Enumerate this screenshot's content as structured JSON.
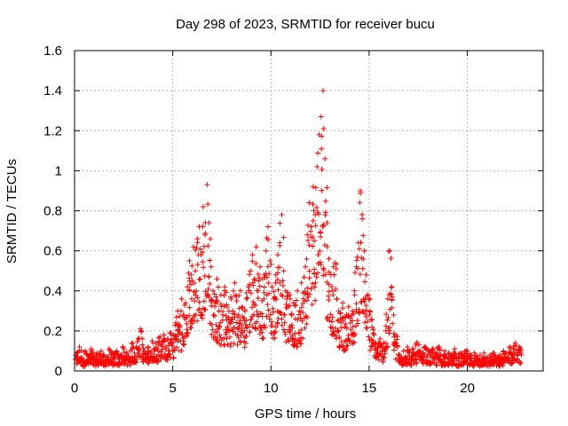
{
  "chart_data": {
    "type": "scatter",
    "title": "Day 298 of 2023, SRMTID for receiver bucu",
    "xlabel": "GPS time / hours",
    "ylabel": "SRMTID / TECUs",
    "xlim": [
      0,
      23.86
    ],
    "ylim": [
      0,
      1.6
    ],
    "x_ticks": [
      0,
      5,
      10,
      15,
      20
    ],
    "x_tick_labels": [
      "0",
      "5",
      "10",
      "15",
      "20"
    ],
    "y_ticks": [
      0,
      0.2,
      0.4,
      0.6,
      0.8,
      1.0,
      1.2,
      1.4,
      1.6
    ],
    "y_tick_labels": [
      "0",
      "0.2",
      "0.4",
      "0.6",
      "0.8",
      "1",
      "1.2",
      "1.4",
      "1.6"
    ],
    "grid": true,
    "marker": "+",
    "color": "#ff0000",
    "series": [
      {
        "name": "SRMTID",
        "points": [
          [
            0.05,
            0.06
          ],
          [
            0.15,
            0.09
          ],
          [
            0.25,
            0.12
          ],
          [
            0.35,
            0.07
          ],
          [
            0.45,
            0.05
          ],
          [
            0.55,
            0.1
          ],
          [
            0.65,
            0.08
          ],
          [
            0.75,
            0.06
          ],
          [
            0.85,
            0.11
          ],
          [
            0.95,
            0.07
          ],
          [
            1.05,
            0.05
          ],
          [
            1.15,
            0.09
          ],
          [
            1.25,
            0.06
          ],
          [
            1.35,
            0.1
          ],
          [
            1.45,
            0.08
          ],
          [
            1.55,
            0.05
          ],
          [
            1.65,
            0.07
          ],
          [
            1.75,
            0.11
          ],
          [
            1.85,
            0.06
          ],
          [
            1.95,
            0.09
          ],
          [
            2.05,
            0.07
          ],
          [
            2.15,
            0.1
          ],
          [
            2.25,
            0.06
          ],
          [
            2.35,
            0.08
          ],
          [
            2.45,
            0.12
          ],
          [
            2.55,
            0.07
          ],
          [
            2.65,
            0.09
          ],
          [
            2.75,
            0.06
          ],
          [
            2.85,
            0.1
          ],
          [
            2.95,
            0.14
          ],
          [
            3.05,
            0.09
          ],
          [
            3.15,
            0.12
          ],
          [
            3.25,
            0.16
          ],
          [
            3.35,
            0.21
          ],
          [
            3.45,
            0.13
          ],
          [
            3.55,
            0.1
          ],
          [
            3.65,
            0.08
          ],
          [
            3.75,
            0.12
          ],
          [
            3.85,
            0.09
          ],
          [
            3.95,
            0.15
          ],
          [
            4.05,
            0.11
          ],
          [
            4.15,
            0.14
          ],
          [
            4.25,
            0.1
          ],
          [
            4.35,
            0.17
          ],
          [
            4.45,
            0.13
          ],
          [
            4.55,
            0.18
          ],
          [
            4.65,
            0.12
          ],
          [
            4.75,
            0.16
          ],
          [
            4.85,
            0.19
          ],
          [
            4.95,
            0.14
          ],
          [
            5.05,
            0.18
          ],
          [
            5.15,
            0.24
          ],
          [
            5.25,
            0.3
          ],
          [
            5.35,
            0.22
          ],
          [
            5.45,
            0.36
          ],
          [
            5.55,
            0.28
          ],
          [
            5.65,
            0.34
          ],
          [
            5.75,
            0.42
          ],
          [
            5.85,
            0.55
          ],
          [
            5.95,
            0.48
          ],
          [
            6.05,
            0.62
          ],
          [
            6.15,
            0.5
          ],
          [
            6.25,
            0.66
          ],
          [
            6.35,
            0.72
          ],
          [
            6.45,
            0.58
          ],
          [
            6.55,
            0.82
          ],
          [
            6.65,
            0.68
          ],
          [
            6.75,
            0.93
          ],
          [
            6.85,
            0.74
          ],
          [
            6.95,
            0.52
          ],
          [
            7.05,
            0.4
          ],
          [
            7.15,
            0.34
          ],
          [
            7.25,
            0.46
          ],
          [
            7.35,
            0.3
          ],
          [
            7.45,
            0.38
          ],
          [
            7.55,
            0.28
          ],
          [
            7.65,
            0.42
          ],
          [
            7.75,
            0.33
          ],
          [
            7.85,
            0.26
          ],
          [
            7.95,
            0.37
          ],
          [
            8.05,
            0.3
          ],
          [
            8.15,
            0.44
          ],
          [
            8.25,
            0.35
          ],
          [
            8.35,
            0.28
          ],
          [
            8.45,
            0.4
          ],
          [
            8.55,
            0.32
          ],
          [
            8.65,
            0.25
          ],
          [
            8.75,
            0.36
          ],
          [
            8.85,
            0.42
          ],
          [
            8.95,
            0.5
          ],
          [
            9.05,
            0.58
          ],
          [
            9.15,
            0.46
          ],
          [
            9.25,
            0.62
          ],
          [
            9.35,
            0.4
          ],
          [
            9.45,
            0.52
          ],
          [
            9.55,
            0.35
          ],
          [
            9.65,
            0.48
          ],
          [
            9.75,
            0.6
          ],
          [
            9.85,
            0.72
          ],
          [
            9.95,
            0.55
          ],
          [
            10.05,
            0.42
          ],
          [
            10.15,
            0.36
          ],
          [
            10.25,
            0.48
          ],
          [
            10.35,
            0.58
          ],
          [
            10.45,
            0.64
          ],
          [
            10.55,
            0.78
          ],
          [
            10.65,
            0.5
          ],
          [
            10.75,
            0.4
          ],
          [
            10.85,
            0.32
          ],
          [
            10.95,
            0.38
          ],
          [
            11.05,
            0.28
          ],
          [
            11.15,
            0.34
          ],
          [
            11.25,
            0.26
          ],
          [
            11.35,
            0.4
          ],
          [
            11.45,
            0.3
          ],
          [
            11.55,
            0.44
          ],
          [
            11.65,
            0.36
          ],
          [
            11.75,
            0.52
          ],
          [
            11.85,
            0.68
          ],
          [
            11.95,
            0.84
          ],
          [
            12.05,
            0.72
          ],
          [
            12.15,
            0.92
          ],
          [
            12.25,
            0.78
          ],
          [
            12.35,
            1.02
          ],
          [
            12.45,
            1.18
          ],
          [
            12.55,
            1.27
          ],
          [
            12.65,
            1.4
          ],
          [
            12.75,
            1.06
          ],
          [
            12.85,
            0.74
          ],
          [
            12.95,
            0.56
          ],
          [
            13.05,
            0.48
          ],
          [
            13.15,
            0.4
          ],
          [
            13.25,
            0.54
          ],
          [
            13.35,
            0.36
          ],
          [
            13.45,
            0.3
          ],
          [
            13.55,
            0.26
          ],
          [
            13.65,
            0.34
          ],
          [
            13.75,
            0.22
          ],
          [
            13.85,
            0.28
          ],
          [
            13.95,
            0.32
          ],
          [
            14.05,
            0.24
          ],
          [
            14.15,
            0.3
          ],
          [
            14.25,
            0.4
          ],
          [
            14.35,
            0.52
          ],
          [
            14.45,
            0.64
          ],
          [
            14.55,
            0.9
          ],
          [
            14.65,
            0.76
          ],
          [
            14.75,
            0.6
          ],
          [
            14.85,
            0.48
          ],
          [
            14.95,
            0.38
          ],
          [
            15.05,
            0.3
          ],
          [
            15.15,
            0.22
          ],
          [
            15.25,
            0.18
          ],
          [
            15.35,
            0.14
          ],
          [
            15.45,
            0.12
          ],
          [
            15.55,
            0.16
          ],
          [
            15.65,
            0.1
          ],
          [
            15.75,
            0.14
          ],
          [
            15.85,
            0.2
          ],
          [
            15.95,
            0.36
          ],
          [
            16.05,
            0.6
          ],
          [
            16.15,
            0.42
          ],
          [
            16.25,
            0.28
          ],
          [
            16.35,
            0.18
          ],
          [
            16.45,
            0.12
          ],
          [
            16.55,
            0.08
          ],
          [
            16.65,
            0.06
          ],
          [
            16.75,
            0.1
          ],
          [
            16.85,
            0.07
          ],
          [
            16.95,
            0.12
          ],
          [
            17.05,
            0.09
          ],
          [
            17.15,
            0.06
          ],
          [
            17.25,
            0.11
          ],
          [
            17.35,
            0.08
          ],
          [
            17.45,
            0.14
          ],
          [
            17.55,
            0.1
          ],
          [
            17.65,
            0.07
          ],
          [
            17.75,
            0.09
          ],
          [
            17.85,
            0.12
          ],
          [
            17.95,
            0.08
          ],
          [
            18.05,
            0.1
          ],
          [
            18.15,
            0.07
          ],
          [
            18.25,
            0.11
          ],
          [
            18.35,
            0.06
          ],
          [
            18.45,
            0.09
          ],
          [
            18.55,
            0.12
          ],
          [
            18.65,
            0.08
          ],
          [
            18.75,
            0.06
          ],
          [
            18.85,
            0.1
          ],
          [
            18.95,
            0.07
          ],
          [
            19.05,
            0.09
          ],
          [
            19.15,
            0.06
          ],
          [
            19.25,
            0.08
          ],
          [
            19.35,
            0.11
          ],
          [
            19.45,
            0.07
          ],
          [
            19.55,
            0.05
          ],
          [
            19.65,
            0.09
          ],
          [
            19.75,
            0.06
          ],
          [
            19.85,
            0.08
          ],
          [
            19.95,
            0.1
          ],
          [
            20.05,
            0.06
          ],
          [
            20.15,
            0.08
          ],
          [
            20.25,
            0.05
          ],
          [
            20.35,
            0.09
          ],
          [
            20.45,
            0.07
          ],
          [
            20.55,
            0.05
          ],
          [
            20.65,
            0.08
          ],
          [
            20.75,
            0.06
          ],
          [
            20.85,
            0.09
          ],
          [
            20.95,
            0.07
          ],
          [
            21.05,
            0.05
          ],
          [
            21.15,
            0.08
          ],
          [
            21.25,
            0.06
          ],
          [
            21.35,
            0.09
          ],
          [
            21.45,
            0.07
          ],
          [
            21.55,
            0.05
          ],
          [
            21.65,
            0.08
          ],
          [
            21.75,
            0.06
          ],
          [
            21.85,
            0.1
          ],
          [
            21.95,
            0.07
          ],
          [
            22.05,
            0.09
          ],
          [
            22.15,
            0.12
          ],
          [
            22.25,
            0.08
          ],
          [
            22.35,
            0.11
          ],
          [
            22.45,
            0.14
          ],
          [
            22.55,
            0.09
          ],
          [
            22.65,
            0.12
          ],
          [
            22.75,
            0.08
          ]
        ]
      }
    ]
  }
}
